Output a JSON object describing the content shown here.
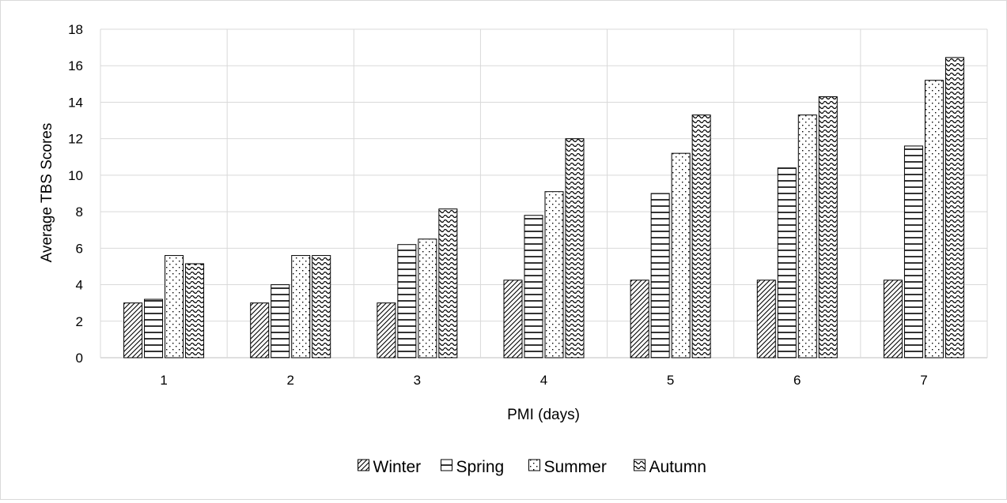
{
  "chart_data": {
    "type": "bar",
    "title": "",
    "xlabel": "PMI (days)",
    "ylabel": "Average TBS Scores",
    "categories": [
      "1",
      "2",
      "3",
      "4",
      "5",
      "6",
      "7"
    ],
    "ylim": [
      0,
      18
    ],
    "yticks": [
      "0",
      "2",
      "4",
      "6",
      "8",
      "10",
      "12",
      "14",
      "16",
      "18"
    ],
    "grid": true,
    "legend_position": "bottom",
    "series": [
      {
        "name": "Winter",
        "pattern": "diagonal-hatch",
        "values": [
          3.0,
          3.0,
          3.0,
          4.25,
          4.25,
          4.25,
          4.25
        ]
      },
      {
        "name": "Spring",
        "pattern": "horizontal-lines",
        "values": [
          3.2,
          4.0,
          6.2,
          7.8,
          9.0,
          10.4,
          11.6
        ]
      },
      {
        "name": "Summer",
        "pattern": "dots",
        "values": [
          5.6,
          5.6,
          6.5,
          9.1,
          11.2,
          13.3,
          15.2
        ]
      },
      {
        "name": "Autumn",
        "pattern": "waves",
        "values": [
          5.15,
          5.6,
          8.15,
          12.0,
          13.3,
          14.3,
          16.45
        ]
      }
    ],
    "colors": {
      "bar_stroke": "#000000",
      "grid": "#d9d9d9",
      "axis": "#bfbfbf"
    }
  }
}
